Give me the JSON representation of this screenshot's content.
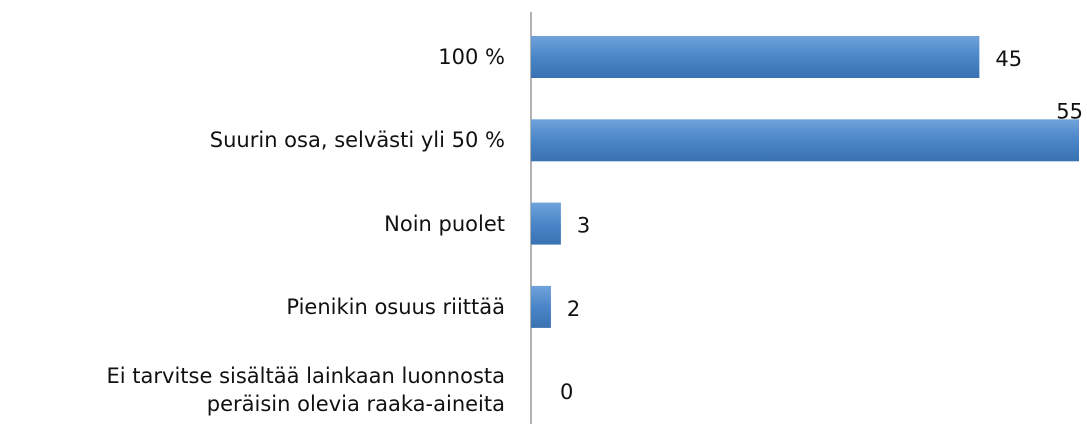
{
  "chart_data": {
    "type": "bar",
    "orientation": "horizontal",
    "categories": [
      "100 %",
      "Suurin osa, selvästi yli 50 %",
      "Noin puolet",
      "Pienikin osuus riittää",
      "Ei tarvitse sisältää lainkaan luonnosta\nperäisin olevia raaka-aineita"
    ],
    "values": [
      45,
      55,
      3,
      2,
      0
    ],
    "color": "#4a86c8",
    "xlim": [
      0,
      55
    ]
  }
}
